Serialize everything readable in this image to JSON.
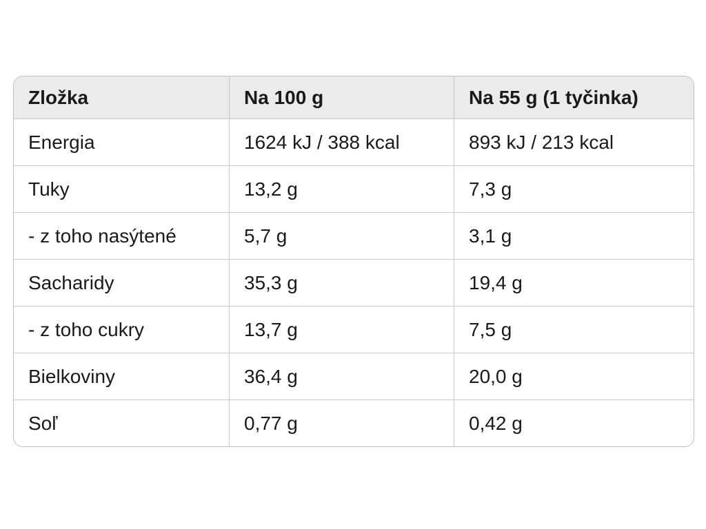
{
  "table": {
    "header": [
      "Zložka",
      "Na 100 g",
      "Na 55 g (1 tyčinka)"
    ],
    "rows": [
      [
        "Energia",
        "1624 kJ / 388 kcal",
        "893 kJ / 213 kcal"
      ],
      [
        "Tuky",
        "13,2 g",
        "7,3 g"
      ],
      [
        "- z toho nasýtené",
        "5,7 g",
        "3,1 g"
      ],
      [
        "Sacharidy",
        "35,3 g",
        "19,4 g"
      ],
      [
        "- z toho cukry",
        "13,7 g",
        "7,5 g"
      ],
      [
        "Bielkoviny",
        "36,4 g",
        "20,0 g"
      ],
      [
        "Soľ",
        "0,77 g",
        "0,42 g"
      ]
    ]
  }
}
